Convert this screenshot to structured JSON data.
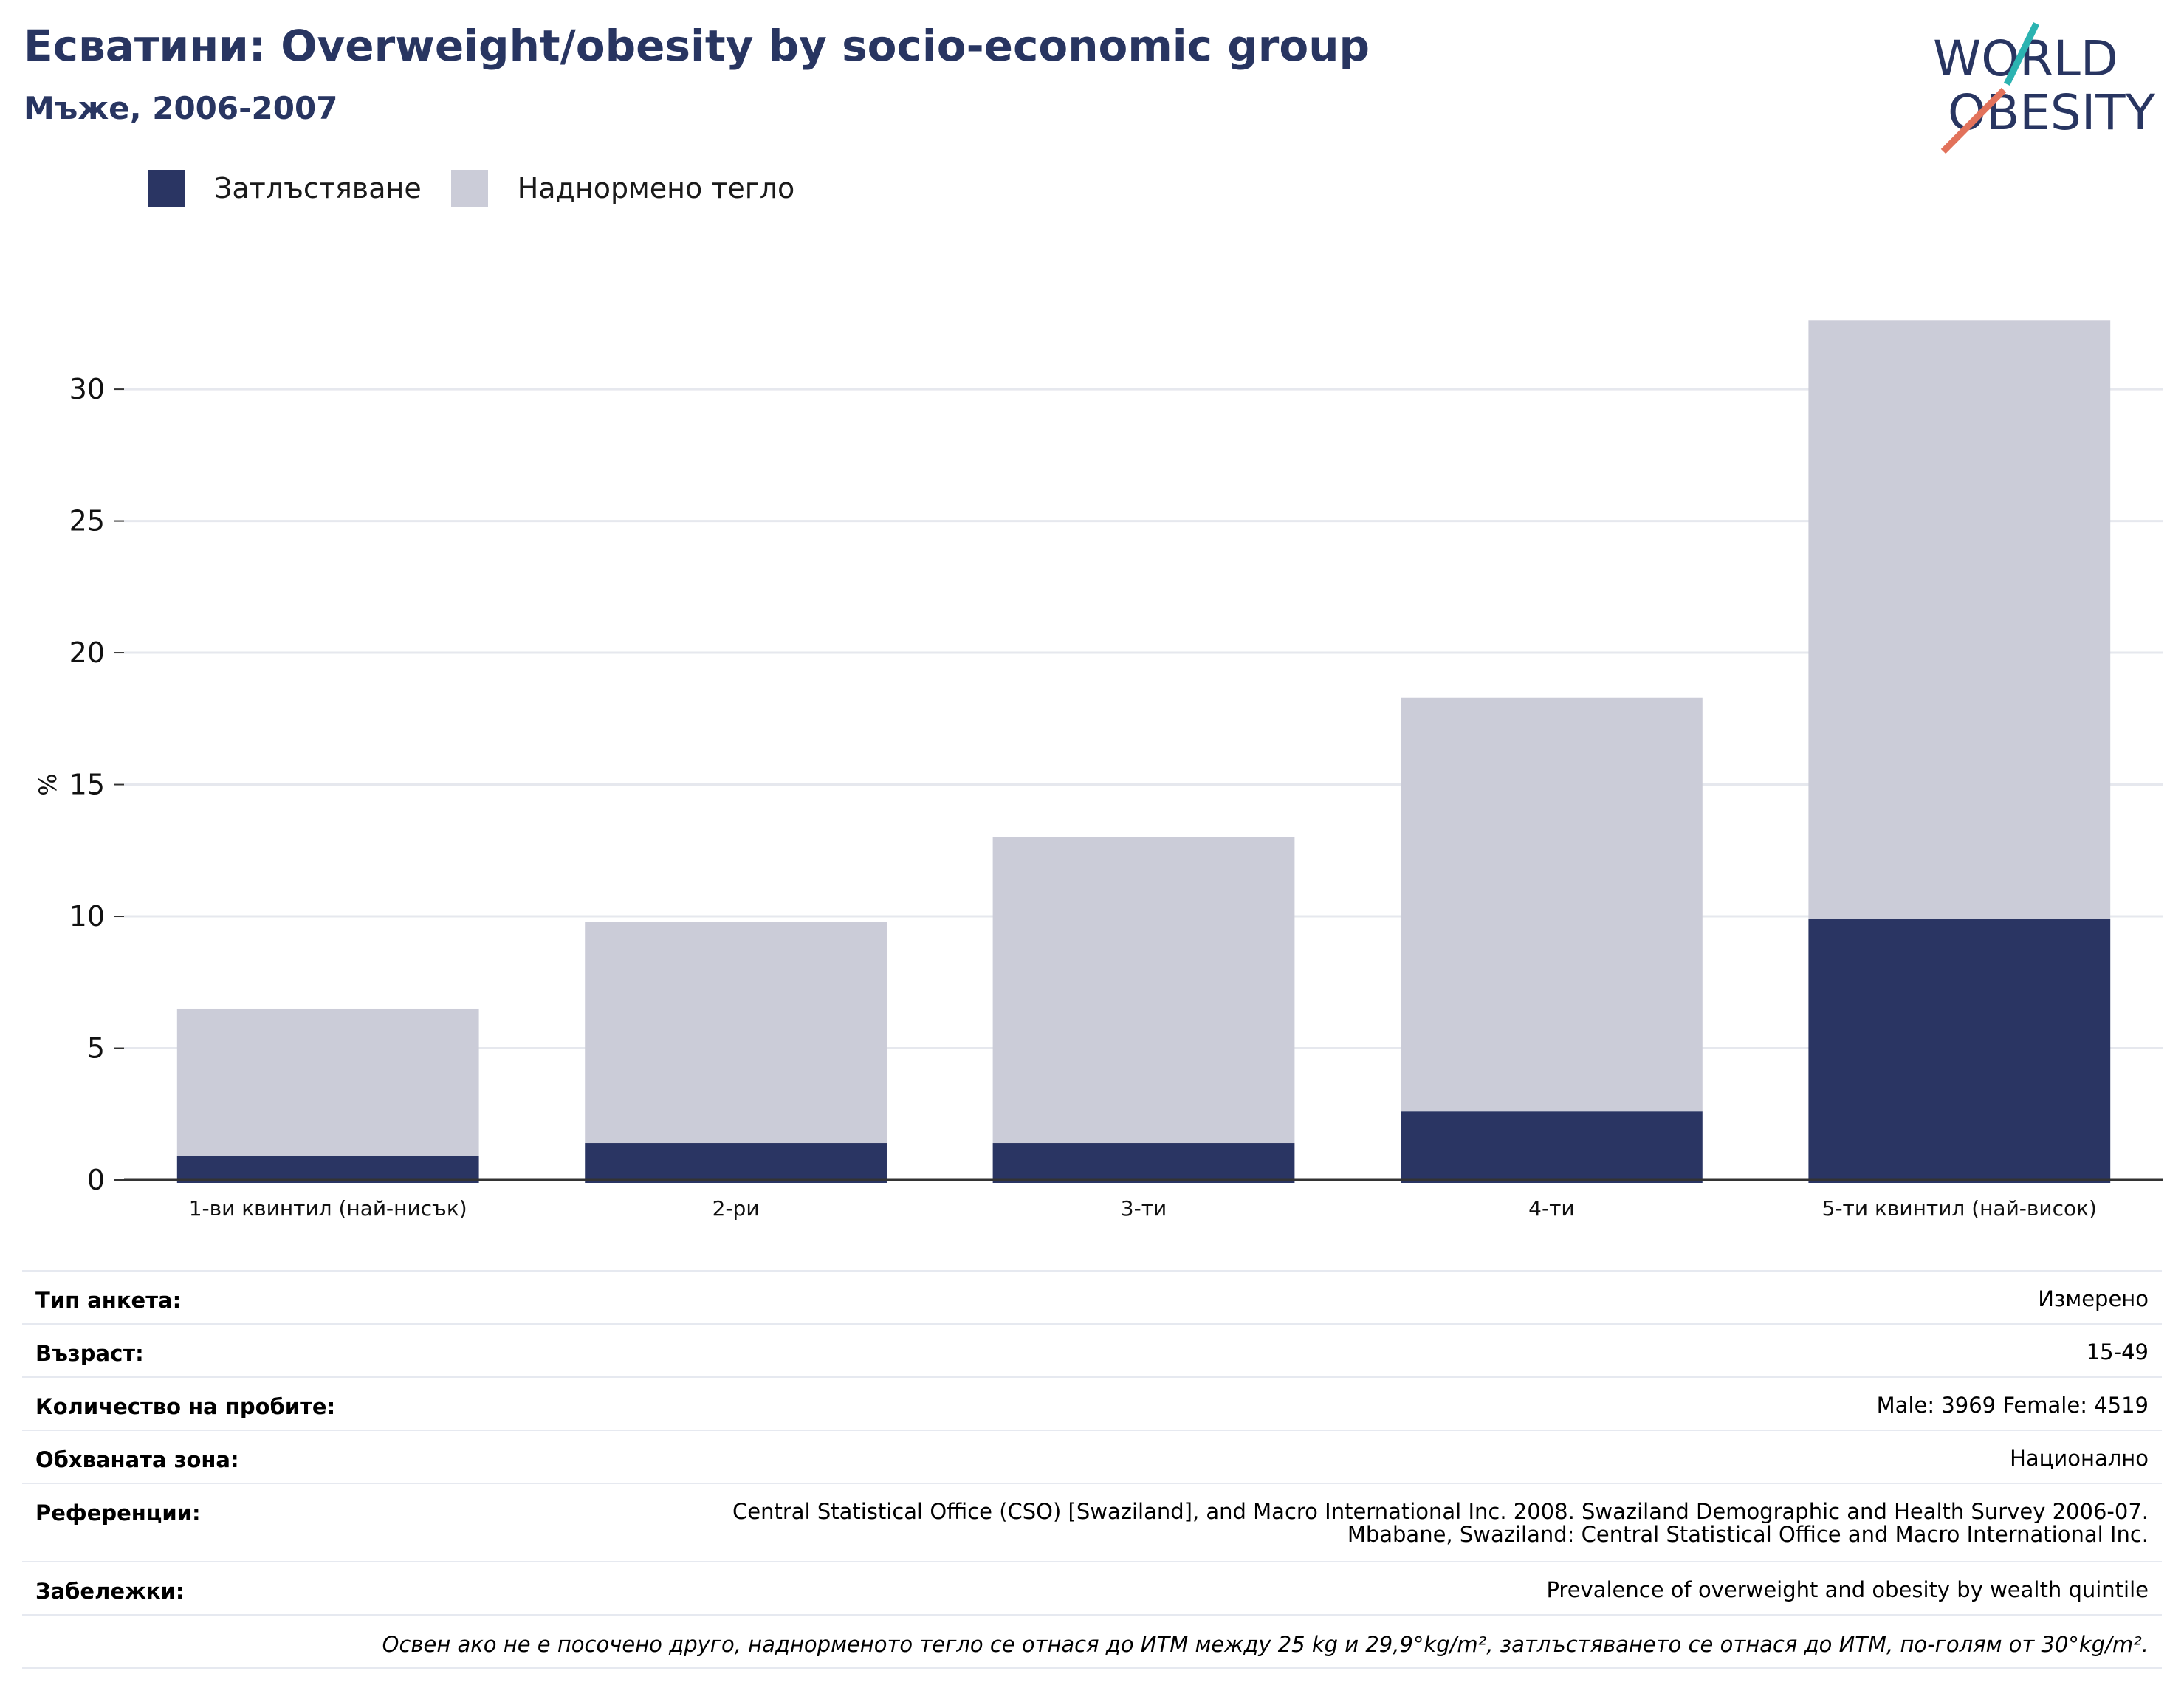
{
  "header": {
    "title": "Есватини: Overweight/obesity by socio-economic group",
    "subtitle": "Мъже, 2006-2007"
  },
  "logo": {
    "line1": "WORLD",
    "line2": "OBESITY"
  },
  "colors": {
    "obesity": "#2a3563",
    "overweight": "#cbccd8",
    "text": "#283561",
    "accent_teal": "#2bb3b1",
    "accent_red": "#e2725b"
  },
  "chart_data": {
    "type": "bar",
    "stacked": true,
    "categories": [
      "1-ви квинтил (най-нисък)",
      "2-ри",
      "3-ти",
      "4-ти",
      "5-ти квинтил (най-висок)"
    ],
    "series": [
      {
        "name": "Затлъстяване",
        "values": [
          0.9,
          1.4,
          1.4,
          2.6,
          9.9
        ]
      },
      {
        "name": "Наднормено тегло",
        "values": [
          5.6,
          8.4,
          11.6,
          15.7,
          22.7
        ]
      }
    ],
    "ylabel": "%",
    "ylim": [
      0,
      33
    ],
    "yticks": [
      0,
      5,
      10,
      15,
      20,
      25,
      30
    ],
    "grid": true,
    "legend": "top-left"
  },
  "info": {
    "rows": [
      {
        "label": "Тип анкета:",
        "value": "Измерено"
      },
      {
        "label": "Възраст:",
        "value": "15-49"
      },
      {
        "label": "Количество на пробите:",
        "value": "Male: 3969 Female: 4519"
      },
      {
        "label": "Обхваната зона:",
        "value": "Национално"
      },
      {
        "label": "Референции:",
        "value": "Central Statistical Office (CSO) [Swaziland], and Macro International Inc. 2008. Swaziland Demographic and Health Survey 2006-07.\nMbabane, Swaziland: Central Statistical Office and Macro International Inc."
      },
      {
        "label": "Забележки:",
        "value": "Prevalence of overweight and obesity by wealth quintile"
      }
    ],
    "note": "Освен ако не е посочено друго, наднорменото тегло се отнася до ИТМ между 25 kg и 29,9°kg/m², затлъстяването се отнася до ИТМ, по-голям от 30°kg/m²."
  }
}
